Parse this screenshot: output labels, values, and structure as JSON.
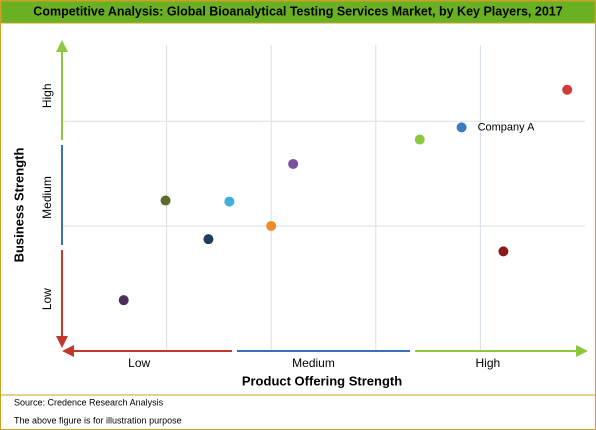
{
  "chart_data": {
    "type": "scatter",
    "title": "Competitive Analysis: Global Bioanalytical Testing Services Market, by Key Players, 2017",
    "x_label": "Product Offering Strength",
    "y_label": "Business Strength",
    "x_categories": [
      "Low",
      "Medium",
      "High"
    ],
    "y_categories": [
      "Low",
      "Medium",
      "High"
    ],
    "xlim": [
      0,
      5
    ],
    "ylim": [
      0,
      3
    ],
    "xgrid": [
      1,
      2,
      3,
      4
    ],
    "ygrid": [
      1.22,
      2.25
    ],
    "points": [
      {
        "x": 0.59,
        "y": 0.49,
        "color": "#4b2d5e"
      },
      {
        "x": 0.99,
        "y": 1.47,
        "color": "#5a6b2a"
      },
      {
        "x": 1.4,
        "y": 1.09,
        "color": "#1f3c5c"
      },
      {
        "x": 1.6,
        "y": 1.46,
        "color": "#3bb0d8"
      },
      {
        "x": 2.0,
        "y": 1.22,
        "color": "#f28c28"
      },
      {
        "x": 2.21,
        "y": 1.83,
        "color": "#7a4fa0"
      },
      {
        "x": 3.42,
        "y": 2.07,
        "color": "#8dc63f"
      },
      {
        "x": 3.82,
        "y": 2.19,
        "color": "#3a7abf",
        "label": "Company A"
      },
      {
        "x": 4.22,
        "y": 0.97,
        "color": "#8b1a1a"
      },
      {
        "x": 4.83,
        "y": 2.56,
        "color": "#d03a3a"
      }
    ],
    "source": "Source: Credence Research Analysis",
    "note": "The above figure is for illustration purpose"
  }
}
